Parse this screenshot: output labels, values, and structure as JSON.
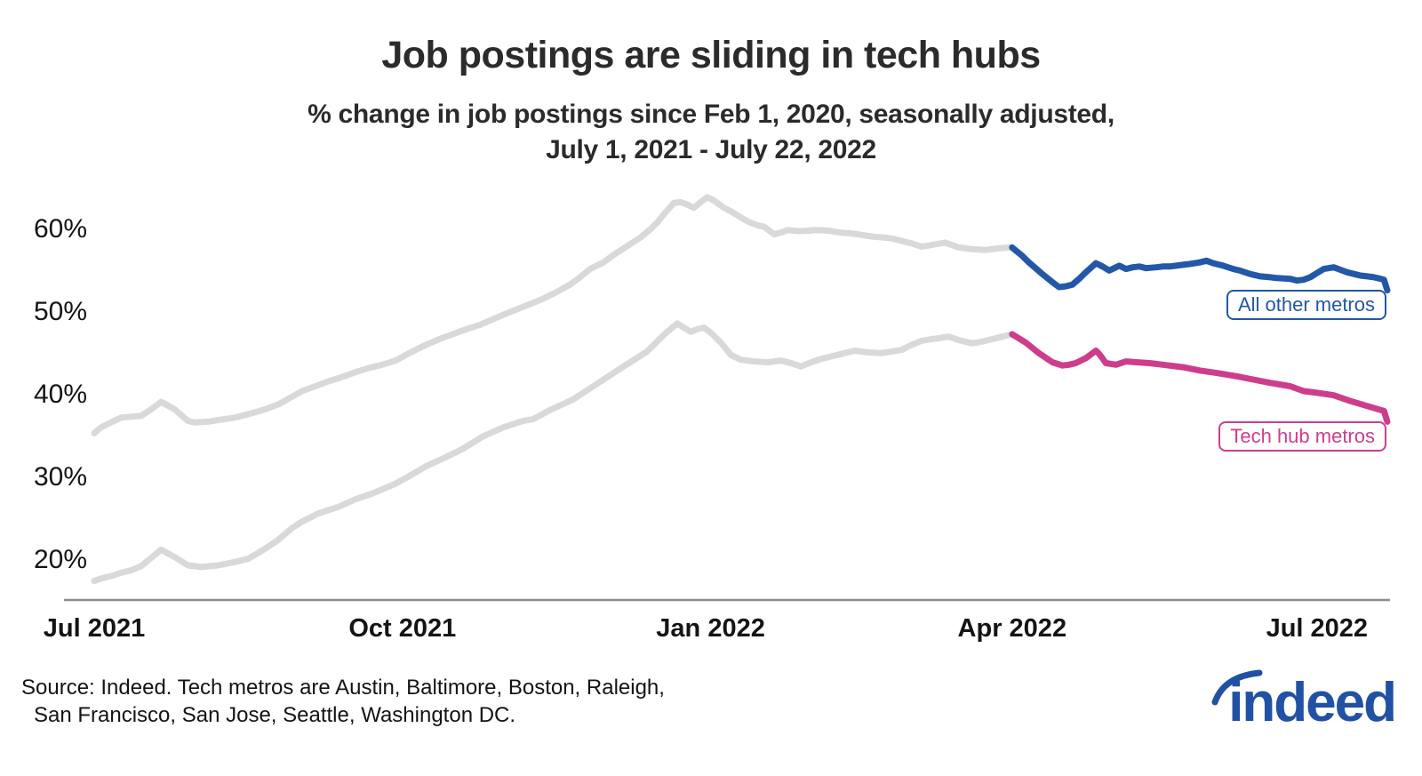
{
  "title": "Job postings are sliding in tech hubs",
  "subtitle_line1": "% change in job postings since Feb 1, 2020, seasonally adjusted,",
  "subtitle_line2": "July 1, 2021 - July 22, 2022",
  "source_line1": "Source: Indeed. Tech metros are Austin, Baltimore, Boston, Raleigh,",
  "source_line2": "San Francisco, San Jose, Seattle, Washington DC.",
  "logo_text": "indeed",
  "colors": {
    "all_other_metros": "#2357a7",
    "tech_hub_metros": "#ce3d8c",
    "pre_highlight_gray": "#d9d9d9",
    "axis_line": "#8c8c8c",
    "logo_blue": "#2151a5",
    "text_dark": "#2b2b2b"
  },
  "chart_data": {
    "type": "line",
    "title": "Job postings are sliding in tech hubs",
    "subtitle": "% change in job postings since Feb 1, 2020, seasonally adjusted, July 1, 2021 - July 22, 2022",
    "x_unit": "days since Jul 1, 2021",
    "x_range_days": [
      0,
      386
    ],
    "x_ticks": [
      {
        "day": 0,
        "label": "Jul 2021"
      },
      {
        "day": 92,
        "label": "Oct 2021"
      },
      {
        "day": 184,
        "label": "Jan 2022"
      },
      {
        "day": 274,
        "label": "Apr 2022"
      },
      {
        "day": 365,
        "label": "Jul 2022"
      }
    ],
    "y_ticks": [
      {
        "value": 20,
        "label": "20%"
      },
      {
        "value": 30,
        "label": "30%"
      },
      {
        "value": 40,
        "label": "40%"
      },
      {
        "value": 50,
        "label": "50%"
      },
      {
        "value": 60,
        "label": "60%"
      }
    ],
    "ylim": [
      15,
      66
    ],
    "grid": false,
    "highlight_start_day": 274,
    "pre_highlight_color": "#d9d9d9",
    "series": [
      {
        "name": "All other metros",
        "label": "All other metros",
        "color": "#2357a7",
        "points": [
          [
            0,
            35.3
          ],
          [
            2,
            36.0
          ],
          [
            5,
            36.6
          ],
          [
            8,
            37.2
          ],
          [
            11,
            37.3
          ],
          [
            14,
            37.4
          ],
          [
            17,
            38.2
          ],
          [
            20,
            39.1
          ],
          [
            24,
            38.2
          ],
          [
            28,
            36.8
          ],
          [
            30,
            36.6
          ],
          [
            34,
            36.7
          ],
          [
            37,
            36.9
          ],
          [
            42,
            37.2
          ],
          [
            46,
            37.6
          ],
          [
            51,
            38.2
          ],
          [
            55,
            38.8
          ],
          [
            59,
            39.7
          ],
          [
            62,
            40.4
          ],
          [
            66,
            41.0
          ],
          [
            70,
            41.6
          ],
          [
            74,
            42.1
          ],
          [
            78,
            42.7
          ],
          [
            82,
            43.2
          ],
          [
            86,
            43.6
          ],
          [
            90,
            44.1
          ],
          [
            94,
            45.0
          ],
          [
            99,
            46.0
          ],
          [
            103,
            46.7
          ],
          [
            107,
            47.3
          ],
          [
            111,
            47.9
          ],
          [
            115,
            48.4
          ],
          [
            119,
            49.1
          ],
          [
            123,
            49.8
          ],
          [
            128,
            50.6
          ],
          [
            131,
            51.1
          ],
          [
            134,
            51.6
          ],
          [
            138,
            52.4
          ],
          [
            142,
            53.3
          ],
          [
            145,
            54.2
          ],
          [
            148,
            55.2
          ],
          [
            152,
            56.0
          ],
          [
            155,
            56.9
          ],
          [
            158,
            57.7
          ],
          [
            160,
            58.2
          ],
          [
            163,
            59.0
          ],
          [
            166,
            60.0
          ],
          [
            168,
            60.8
          ],
          [
            170,
            61.8
          ],
          [
            173,
            63.2
          ],
          [
            175,
            63.3
          ],
          [
            177,
            63.0
          ],
          [
            179,
            62.6
          ],
          [
            181,
            63.3
          ],
          [
            183,
            63.9
          ],
          [
            185,
            63.5
          ],
          [
            188,
            62.6
          ],
          [
            190,
            62.2
          ],
          [
            192,
            61.7
          ],
          [
            194,
            61.2
          ],
          [
            196,
            60.8
          ],
          [
            198,
            60.5
          ],
          [
            200,
            60.3
          ],
          [
            203,
            59.4
          ],
          [
            205,
            59.6
          ],
          [
            207,
            59.9
          ],
          [
            210,
            59.8
          ],
          [
            212,
            59.8
          ],
          [
            215,
            59.9
          ],
          [
            217,
            59.9
          ],
          [
            220,
            59.8
          ],
          [
            223,
            59.6
          ],
          [
            226,
            59.5
          ],
          [
            228,
            59.4
          ],
          [
            231,
            59.2
          ],
          [
            233,
            59.1
          ],
          [
            236,
            59.0
          ],
          [
            238,
            58.9
          ],
          [
            241,
            58.6
          ],
          [
            244,
            58.3
          ],
          [
            247,
            57.9
          ],
          [
            250,
            58.1
          ],
          [
            254,
            58.4
          ],
          [
            256,
            58.1
          ],
          [
            258,
            57.8
          ],
          [
            262,
            57.6
          ],
          [
            266,
            57.5
          ],
          [
            268,
            57.6
          ],
          [
            270,
            57.7
          ],
          [
            274,
            57.8
          ],
          [
            277,
            56.8
          ],
          [
            279,
            56.0
          ],
          [
            281,
            55.3
          ],
          [
            283,
            54.6
          ],
          [
            286,
            53.6
          ],
          [
            288,
            53.0
          ],
          [
            290,
            53.1
          ],
          [
            292,
            53.3
          ],
          [
            294,
            54.0
          ],
          [
            296,
            54.8
          ],
          [
            299,
            55.9
          ],
          [
            301,
            55.5
          ],
          [
            303,
            55.0
          ],
          [
            305,
            55.4
          ],
          [
            306,
            55.6
          ],
          [
            308,
            55.2
          ],
          [
            310,
            55.4
          ],
          [
            312,
            55.5
          ],
          [
            314,
            55.3
          ],
          [
            317,
            55.4
          ],
          [
            319,
            55.5
          ],
          [
            321,
            55.5
          ],
          [
            323,
            55.6
          ],
          [
            325,
            55.7
          ],
          [
            327,
            55.8
          ],
          [
            330,
            56.0
          ],
          [
            332,
            56.2
          ],
          [
            334,
            55.9
          ],
          [
            337,
            55.6
          ],
          [
            340,
            55.2
          ],
          [
            342,
            55.0
          ],
          [
            345,
            54.6
          ],
          [
            348,
            54.3
          ],
          [
            351,
            54.2
          ],
          [
            353,
            54.1
          ],
          [
            357,
            54.0
          ],
          [
            359,
            53.8
          ],
          [
            361,
            53.9
          ],
          [
            363,
            54.2
          ],
          [
            365,
            54.7
          ],
          [
            367,
            55.2
          ],
          [
            370,
            55.4
          ],
          [
            372,
            55.1
          ],
          [
            374,
            54.8
          ],
          [
            376,
            54.6
          ],
          [
            378,
            54.4
          ],
          [
            380,
            54.3
          ],
          [
            382,
            54.2
          ],
          [
            384,
            54.0
          ],
          [
            385,
            53.9
          ],
          [
            386,
            52.6
          ]
        ]
      },
      {
        "name": "Tech hub metros",
        "label": "Tech hub metros",
        "color": "#ce3d8c",
        "points": [
          [
            0,
            17.4
          ],
          [
            2,
            17.7
          ],
          [
            5,
            18.0
          ],
          [
            8,
            18.4
          ],
          [
            11,
            18.7
          ],
          [
            14,
            19.2
          ],
          [
            17,
            20.2
          ],
          [
            20,
            21.2
          ],
          [
            24,
            20.3
          ],
          [
            28,
            19.3
          ],
          [
            32,
            19.1
          ],
          [
            37,
            19.3
          ],
          [
            42,
            19.7
          ],
          [
            46,
            20.1
          ],
          [
            51,
            21.3
          ],
          [
            55,
            22.4
          ],
          [
            59,
            23.8
          ],
          [
            62,
            24.6
          ],
          [
            67,
            25.6
          ],
          [
            73,
            26.4
          ],
          [
            78,
            27.3
          ],
          [
            83,
            28.0
          ],
          [
            90,
            29.2
          ],
          [
            94,
            30.1
          ],
          [
            99,
            31.3
          ],
          [
            105,
            32.4
          ],
          [
            110,
            33.4
          ],
          [
            116,
            34.9
          ],
          [
            122,
            36.0
          ],
          [
            128,
            36.8
          ],
          [
            131,
            37.0
          ],
          [
            136,
            38.1
          ],
          [
            143,
            39.4
          ],
          [
            149,
            41.0
          ],
          [
            155,
            42.6
          ],
          [
            160,
            43.9
          ],
          [
            165,
            45.2
          ],
          [
            170,
            47.2
          ],
          [
            174,
            48.6
          ],
          [
            176,
            48.1
          ],
          [
            178,
            47.6
          ],
          [
            180,
            47.9
          ],
          [
            182,
            48.1
          ],
          [
            184,
            47.5
          ],
          [
            187,
            46.3
          ],
          [
            190,
            44.8
          ],
          [
            193,
            44.2
          ],
          [
            197,
            44.0
          ],
          [
            201,
            43.9
          ],
          [
            205,
            44.1
          ],
          [
            208,
            43.8
          ],
          [
            211,
            43.4
          ],
          [
            214,
            43.9
          ],
          [
            217,
            44.3
          ],
          [
            220,
            44.6
          ],
          [
            223,
            44.9
          ],
          [
            227,
            45.3
          ],
          [
            231,
            45.1
          ],
          [
            235,
            45.0
          ],
          [
            238,
            45.2
          ],
          [
            241,
            45.4
          ],
          [
            244,
            46.0
          ],
          [
            247,
            46.5
          ],
          [
            250,
            46.7
          ],
          [
            252,
            46.8
          ],
          [
            255,
            47.0
          ],
          [
            258,
            46.6
          ],
          [
            262,
            46.2
          ],
          [
            264,
            46.3
          ],
          [
            266,
            46.5
          ],
          [
            270,
            46.9
          ],
          [
            274,
            47.3
          ],
          [
            278,
            46.3
          ],
          [
            282,
            45.0
          ],
          [
            286,
            43.9
          ],
          [
            289,
            43.5
          ],
          [
            291,
            43.6
          ],
          [
            293,
            43.8
          ],
          [
            296,
            44.4
          ],
          [
            299,
            45.3
          ],
          [
            300,
            44.9
          ],
          [
            302,
            43.8
          ],
          [
            305,
            43.6
          ],
          [
            308,
            44.0
          ],
          [
            311,
            43.9
          ],
          [
            315,
            43.8
          ],
          [
            319,
            43.6
          ],
          [
            325,
            43.3
          ],
          [
            330,
            42.9
          ],
          [
            335,
            42.6
          ],
          [
            341,
            42.2
          ],
          [
            346,
            41.8
          ],
          [
            351,
            41.4
          ],
          [
            357,
            41.0
          ],
          [
            361,
            40.4
          ],
          [
            365,
            40.2
          ],
          [
            370,
            39.9
          ],
          [
            375,
            39.2
          ],
          [
            380,
            38.6
          ],
          [
            385,
            38.0
          ],
          [
            386,
            36.7
          ]
        ]
      }
    ],
    "legend_position": "end-of-line labels, right side"
  }
}
